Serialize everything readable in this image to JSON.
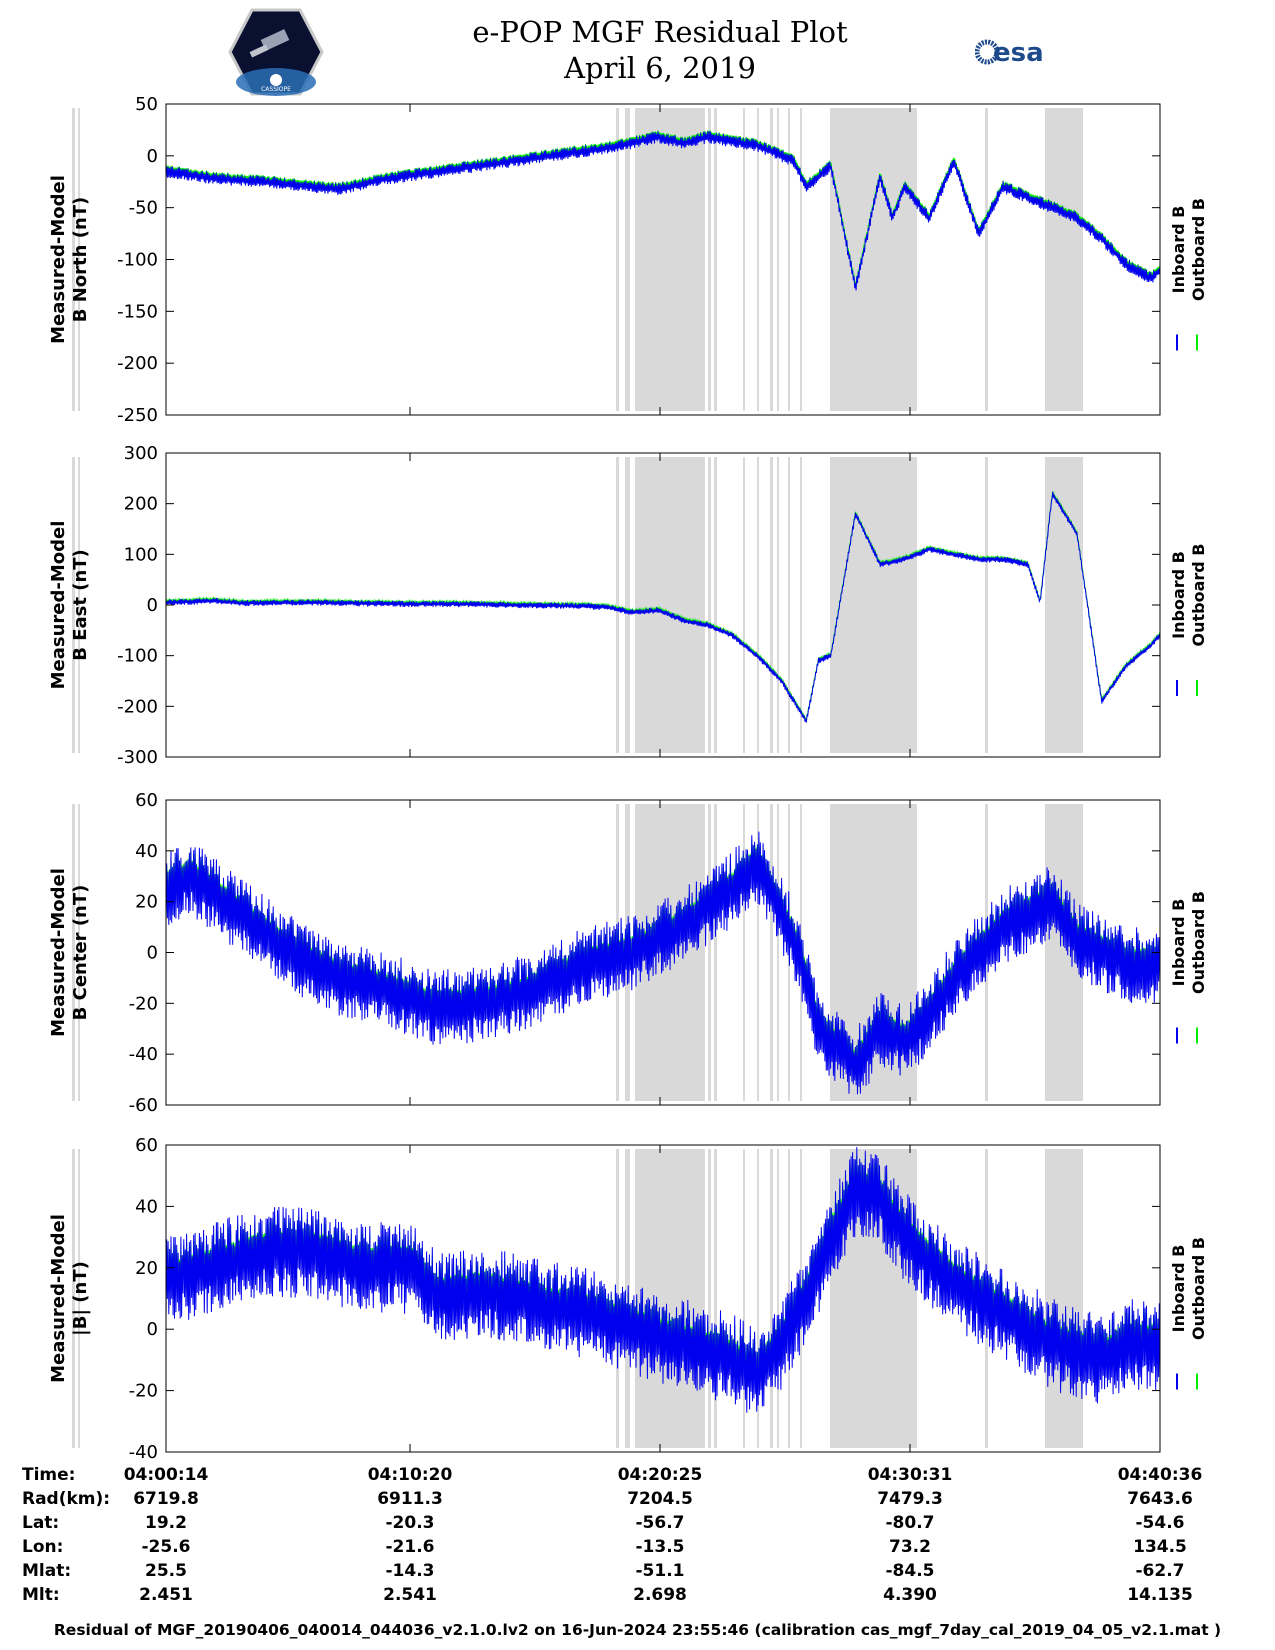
{
  "header": {
    "title_line1": "e-POP MGF Residual Plot",
    "title_line2": "April 6, 2019",
    "logo_left_text": "CASSIOPE",
    "logo_right_text": "esa"
  },
  "colors": {
    "inboard": "#0000ee",
    "outboard": "#00ee00",
    "gap_shade": "#d9d9d9"
  },
  "legend": {
    "inboard": "Inboard B",
    "outboard": "Outboard B"
  },
  "chart_data": [
    {
      "type": "line",
      "ylabel": [
        "Measured-Model",
        "B North (nT)"
      ],
      "ylim": [
        -250,
        50
      ],
      "yticks": [
        50,
        0,
        -50,
        -100,
        -150,
        -200,
        -250
      ],
      "x_range": [
        0,
        40.37
      ],
      "series": [
        {
          "name": "Inboard B",
          "amp": 4,
          "x": [
            0,
            2,
            4,
            7,
            9,
            12,
            15,
            18,
            20,
            21,
            22,
            24,
            25.5,
            26,
            27,
            28,
            29,
            29.5,
            30,
            31,
            32,
            33,
            34,
            35,
            36,
            37,
            38,
            39,
            40,
            40.37
          ],
          "values": [
            -15,
            -22,
            -25,
            -32,
            -22,
            -12,
            -2,
            8,
            18,
            12,
            18,
            10,
            -5,
            -30,
            -10,
            -128,
            -20,
            -60,
            -30,
            -60,
            -5,
            -75,
            -30,
            -40,
            -50,
            -60,
            -80,
            -105,
            -118,
            -110
          ]
        }
      ]
    },
    {
      "type": "line",
      "ylabel": [
        "Measured-Model",
        "B East (nT)"
      ],
      "ylim": [
        -300,
        300
      ],
      "yticks": [
        300,
        200,
        100,
        0,
        -100,
        -200,
        -300
      ],
      "x_range": [
        0,
        40.37
      ],
      "series": [
        {
          "name": "Inboard B",
          "amp": 4,
          "x": [
            0,
            2,
            3,
            6,
            8,
            10,
            12,
            14,
            17,
            18,
            19,
            20,
            21,
            22,
            23,
            24,
            25,
            26,
            26.5,
            27,
            28,
            29,
            30,
            31,
            32,
            33,
            34,
            35,
            35.5,
            36,
            37,
            38,
            39,
            40,
            40.37
          ],
          "values": [
            5,
            8,
            4,
            5,
            3,
            2,
            2,
            0,
            -2,
            -5,
            -15,
            -10,
            -30,
            -40,
            -60,
            -100,
            -150,
            -230,
            -110,
            -100,
            180,
            80,
            90,
            110,
            100,
            90,
            90,
            80,
            5,
            220,
            140,
            -190,
            -120,
            -80,
            -60
          ]
        }
      ]
    },
    {
      "type": "line",
      "ylabel": [
        "Measured-Model",
        "B Center (nT)"
      ],
      "ylim": [
        -60,
        60
      ],
      "yticks": [
        60,
        40,
        20,
        0,
        -20,
        -40,
        -60
      ],
      "x_range": [
        0,
        40.37
      ],
      "series": [
        {
          "name": "Inboard B",
          "amp": 10,
          "x": [
            0,
            1,
            3,
            5,
            7,
            9,
            11,
            13,
            15,
            17,
            19,
            21,
            23,
            24,
            24.5,
            25.5,
            26,
            26.5,
            27,
            28,
            29,
            30,
            31,
            32,
            33,
            34,
            35,
            36,
            37,
            38,
            39,
            40,
            40.37
          ],
          "values": [
            25,
            30,
            15,
            0,
            -10,
            -15,
            -22,
            -20,
            -15,
            -5,
            0,
            10,
            25,
            35,
            25,
            5,
            -10,
            -30,
            -35,
            -45,
            -30,
            -35,
            -25,
            -10,
            0,
            10,
            15,
            20,
            5,
            0,
            -5,
            -5,
            -5
          ]
        }
      ]
    },
    {
      "type": "line",
      "ylabel": [
        "Measured-Model",
        "|B| (nT)"
      ],
      "ylim": [
        -40,
        60
      ],
      "yticks": [
        60,
        40,
        20,
        0,
        -20,
        -40
      ],
      "x_range": [
        0,
        40.37
      ],
      "series": [
        {
          "name": "Inboard B",
          "amp": 10,
          "x": [
            0,
            2,
            4,
            6,
            8,
            10,
            11,
            13,
            15,
            17,
            19,
            21,
            23,
            24,
            25,
            26,
            27,
            28,
            29,
            30,
            32,
            34,
            36,
            38,
            39,
            40,
            40.37
          ],
          "values": [
            15,
            20,
            25,
            25,
            20,
            20,
            10,
            12,
            8,
            5,
            0,
            -5,
            -10,
            -15,
            -5,
            10,
            30,
            45,
            42,
            30,
            15,
            5,
            -5,
            -10,
            -5,
            -5,
            -5
          ]
        }
      ]
    }
  ],
  "x_ticks": [
    "04:00:14",
    "04:10:20",
    "04:20:25",
    "04:30:31",
    "04:40:36"
  ],
  "info": {
    "rows": [
      {
        "label": "Time:",
        "values": [
          "04:00:14",
          "04:10:20",
          "04:20:25",
          "04:30:31",
          "04:40:36"
        ]
      },
      {
        "label": "Rad(km):",
        "values": [
          "6719.8",
          "6911.3",
          "7204.5",
          "7479.3",
          "7643.6"
        ]
      },
      {
        "label": "Lat:",
        "values": [
          "19.2",
          "-20.3",
          "-56.7",
          "-80.7",
          "-54.6"
        ]
      },
      {
        "label": "Lon:",
        "values": [
          "-25.6",
          "-21.6",
          "-13.5",
          "73.2",
          "134.5"
        ]
      },
      {
        "label": "Mlat:",
        "values": [
          "25.5",
          "-14.3",
          "-51.1",
          "-84.5",
          "-62.7"
        ]
      },
      {
        "label": "Mlt:",
        "values": [
          "2.451",
          "2.541",
          "2.698",
          "4.390",
          "14.135"
        ]
      }
    ]
  },
  "footer": "Residual of MGF_20190406_040014_044036_v2.1.0.lv2 on 16-Jun-2024 23:55:46 (calibration cas_mgf_7day_cal_2019_04_05_v2.1.mat )"
}
